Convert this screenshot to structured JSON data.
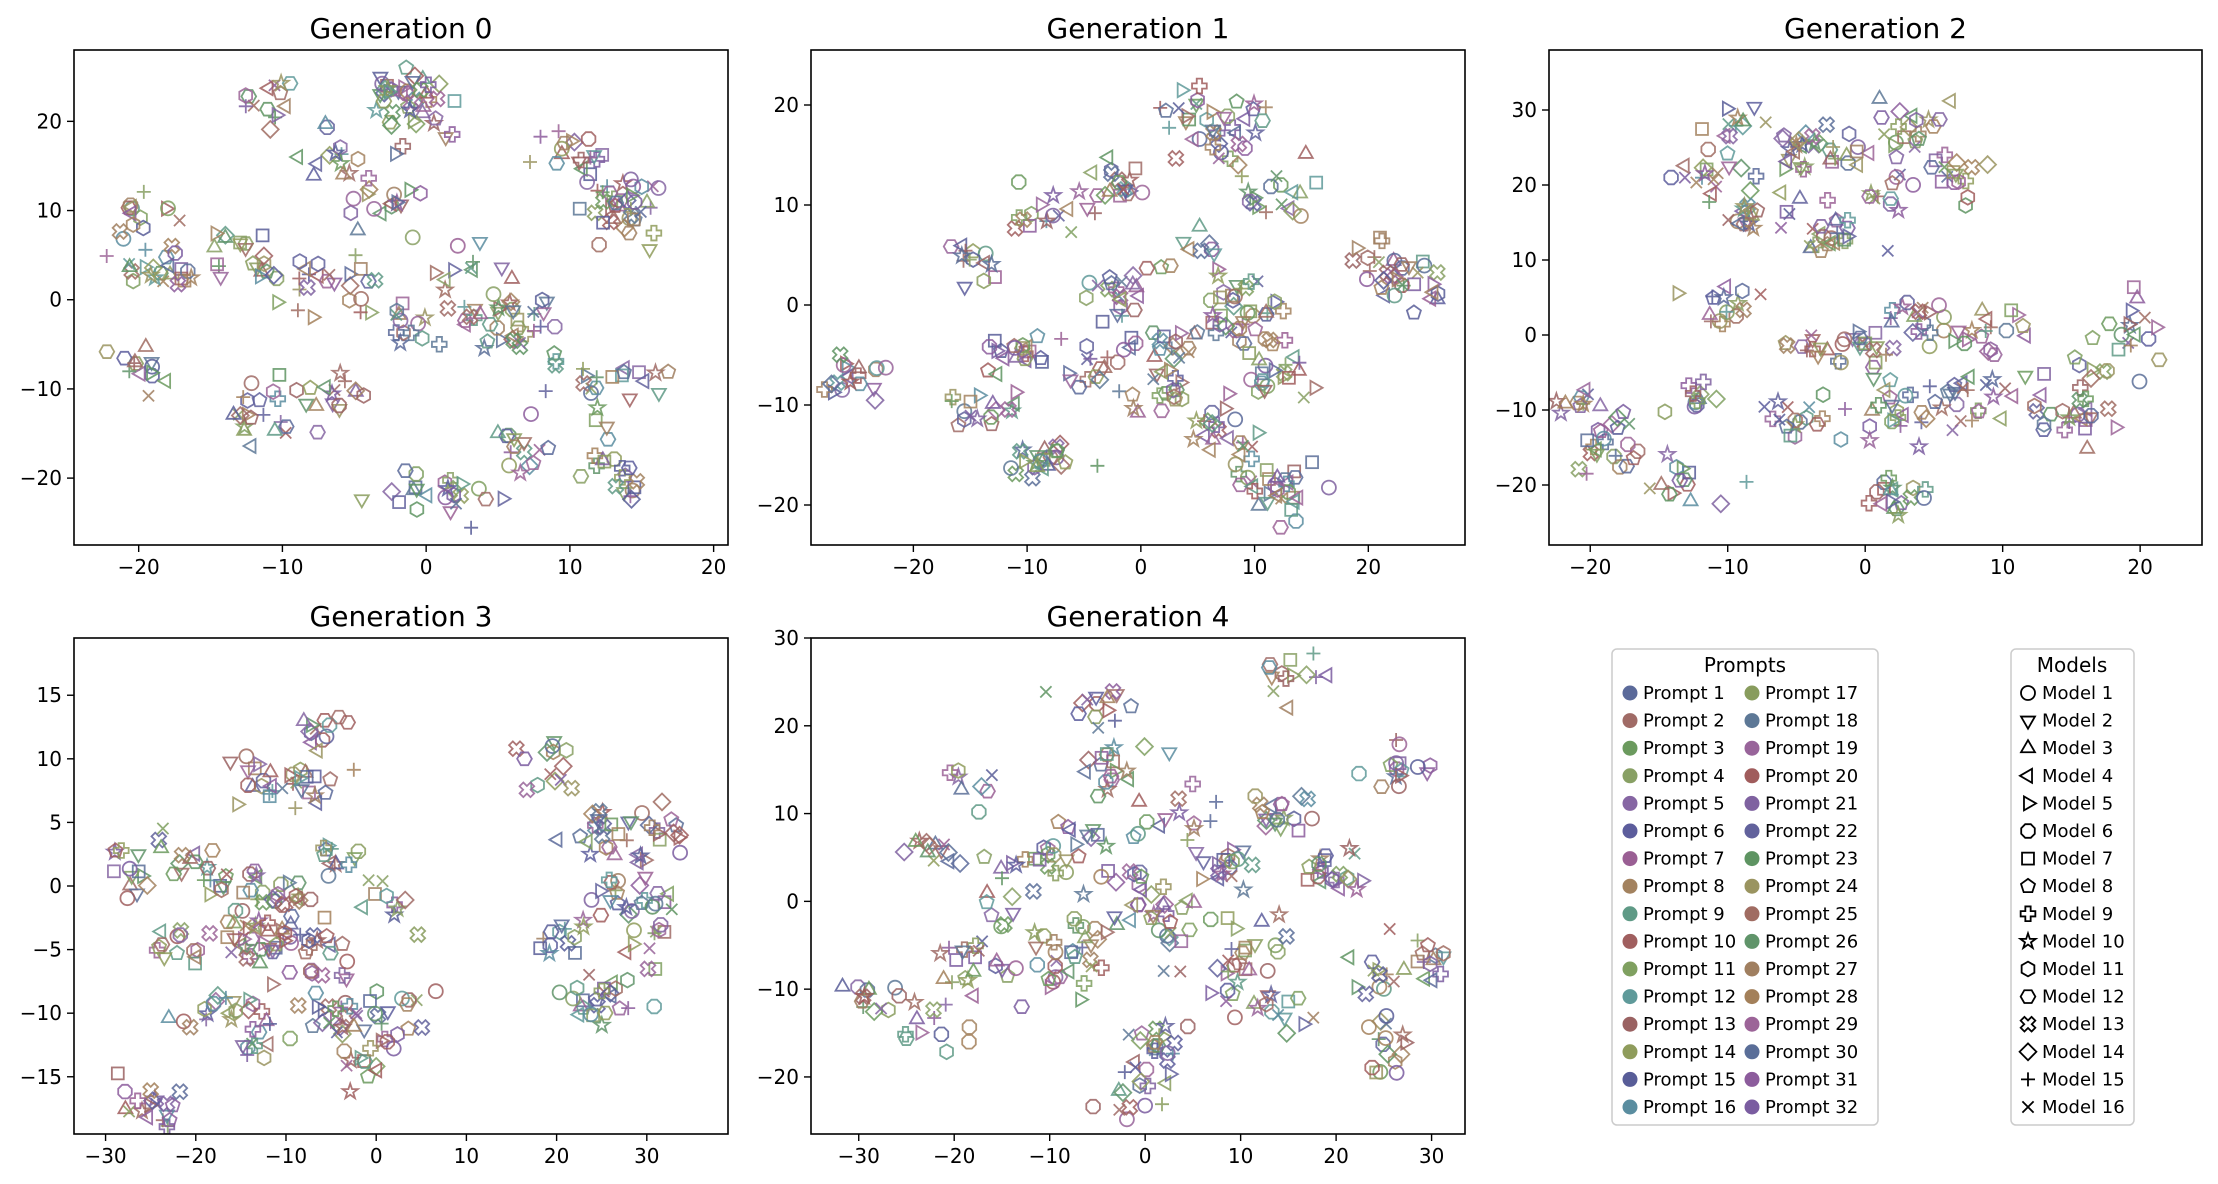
{
  "chart_data": [
    {
      "type": "scatter",
      "title": "Generation 0",
      "xlabel": "",
      "ylabel": "",
      "xlim": [
        -24.5,
        21
      ],
      "ylim": [
        -27.5,
        28
      ],
      "xticks": [
        -20,
        -10,
        0,
        10,
        20
      ],
      "yticks": [
        -20,
        -10,
        0,
        10,
        20
      ],
      "n_points": 420
    },
    {
      "type": "scatter",
      "title": "Generation 1",
      "xlabel": "",
      "ylabel": "",
      "xlim": [
        -29,
        28.5
      ],
      "ylim": [
        -24,
        25.5
      ],
      "xticks": [
        -20,
        -10,
        0,
        10,
        20
      ],
      "yticks": [
        -20,
        -10,
        0,
        10,
        20
      ],
      "n_points": 420
    },
    {
      "type": "scatter",
      "title": "Generation 2",
      "xlabel": "",
      "ylabel": "",
      "xlim": [
        -23,
        24.5
      ],
      "ylim": [
        -28,
        38
      ],
      "xticks": [
        -20,
        -10,
        0,
        10,
        20
      ],
      "yticks": [
        -20,
        -10,
        0,
        10,
        20,
        30
      ],
      "n_points": 420
    },
    {
      "type": "scatter",
      "title": "Generation 3",
      "xlabel": "",
      "ylabel": "",
      "xlim": [
        -33.5,
        39
      ],
      "ylim": [
        -19.5,
        19.5
      ],
      "xticks": [
        -30,
        -20,
        -10,
        0,
        10,
        20,
        30
      ],
      "yticks": [
        -15,
        -10,
        -5,
        0,
        5,
        10,
        15
      ],
      "n_points": 420
    },
    {
      "type": "scatter",
      "title": "Generation 4",
      "xlabel": "",
      "ylabel": "",
      "xlim": [
        -35,
        33.5
      ],
      "ylim": [
        -26.5,
        30
      ],
      "xticks": [
        -30,
        -20,
        -10,
        0,
        10,
        20,
        30
      ],
      "yticks": [
        -20,
        -10,
        0,
        10,
        20,
        30
      ],
      "n_points": 420
    }
  ],
  "legends": {
    "prompts": {
      "title": "Prompts",
      "items": [
        {
          "label": "Prompt 1",
          "color": "#5b6a9a"
        },
        {
          "label": "Prompt 2",
          "color": "#a06b66"
        },
        {
          "label": "Prompt 3",
          "color": "#6b9a5e"
        },
        {
          "label": "Prompt 4",
          "color": "#88a064"
        },
        {
          "label": "Prompt 5",
          "color": "#8666a3"
        },
        {
          "label": "Prompt 6",
          "color": "#5c5d9c"
        },
        {
          "label": "Prompt 7",
          "color": "#9a5f94"
        },
        {
          "label": "Prompt 8",
          "color": "#a3825f"
        },
        {
          "label": "Prompt 9",
          "color": "#5f9a86"
        },
        {
          "label": "Prompt 10",
          "color": "#a05f5f"
        },
        {
          "label": "Prompt 11",
          "color": "#7fa060"
        },
        {
          "label": "Prompt 12",
          "color": "#5f9a9a"
        },
        {
          "label": "Prompt 13",
          "color": "#9a6262"
        },
        {
          "label": "Prompt 14",
          "color": "#8f9c5c"
        },
        {
          "label": "Prompt 15",
          "color": "#585d98"
        },
        {
          "label": "Prompt 16",
          "color": "#5a8da0"
        },
        {
          "label": "Prompt 17",
          "color": "#889c5d"
        },
        {
          "label": "Prompt 18",
          "color": "#5d7896"
        },
        {
          "label": "Prompt 19",
          "color": "#98649a"
        },
        {
          "label": "Prompt 20",
          "color": "#a05c5c"
        },
        {
          "label": "Prompt 21",
          "color": "#7f62a0"
        },
        {
          "label": "Prompt 22",
          "color": "#62629c"
        },
        {
          "label": "Prompt 23",
          "color": "#5e9462"
        },
        {
          "label": "Prompt 24",
          "color": "#9a9460"
        },
        {
          "label": "Prompt 25",
          "color": "#a06c62"
        },
        {
          "label": "Prompt 26",
          "color": "#60946a"
        },
        {
          "label": "Prompt 27",
          "color": "#a07f60"
        },
        {
          "label": "Prompt 28",
          "color": "#a3805a"
        },
        {
          "label": "Prompt 29",
          "color": "#9c6498"
        },
        {
          "label": "Prompt 30",
          "color": "#5a6e98"
        },
        {
          "label": "Prompt 31",
          "color": "#8c5c9c"
        },
        {
          "label": "Prompt 32",
          "color": "#7a5ca0"
        }
      ]
    },
    "models": {
      "title": "Models",
      "items": [
        {
          "label": "Model 1",
          "marker": "circle"
        },
        {
          "label": "Model 2",
          "marker": "triangle-down"
        },
        {
          "label": "Model 3",
          "marker": "triangle-up"
        },
        {
          "label": "Model 4",
          "marker": "triangle-left"
        },
        {
          "label": "Model 5",
          "marker": "triangle-right"
        },
        {
          "label": "Model 6",
          "marker": "octagon"
        },
        {
          "label": "Model 7",
          "marker": "square"
        },
        {
          "label": "Model 8",
          "marker": "pentagon"
        },
        {
          "label": "Model 9",
          "marker": "plus-filled"
        },
        {
          "label": "Model 10",
          "marker": "star"
        },
        {
          "label": "Model 11",
          "marker": "hexagon"
        },
        {
          "label": "Model 12",
          "marker": "hexagon-2"
        },
        {
          "label": "Model 13",
          "marker": "x-filled"
        },
        {
          "label": "Model 14",
          "marker": "diamond"
        },
        {
          "label": "Model 15",
          "marker": "plus"
        },
        {
          "label": "Model 16",
          "marker": "x"
        }
      ]
    }
  }
}
